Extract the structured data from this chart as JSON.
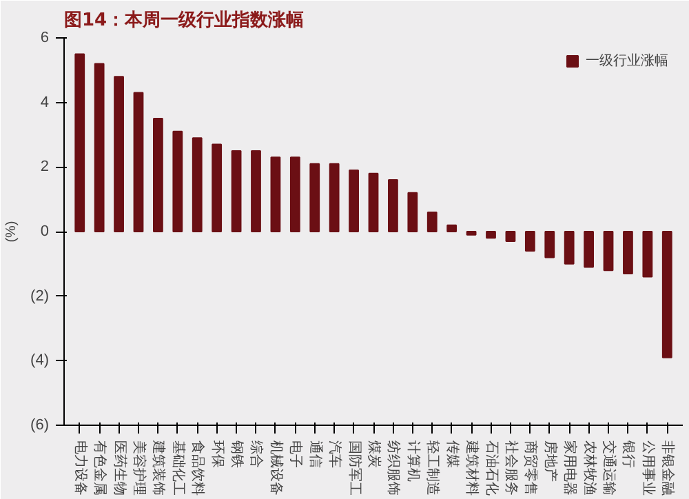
{
  "chart_data": {
    "type": "bar",
    "title": "图14：本周一级行业指数涨幅",
    "ylabel": "(%)",
    "categories": [
      "电力设备",
      "有色金属",
      "医药生物",
      "美容护理",
      "建筑装饰",
      "基础化工",
      "食品饮料",
      "环保",
      "钢铁",
      "综合",
      "机械设备",
      "电子",
      "通信",
      "汽车",
      "国防军工",
      "煤炭",
      "纺织服饰",
      "计算机",
      "轻工制造",
      "传媒",
      "建筑材料",
      "石油石化",
      "社会服务",
      "商贸零售",
      "房地产",
      "家用电器",
      "农林牧渔",
      "交通运输",
      "银行",
      "公用事业",
      "非银金融"
    ],
    "series": [
      {
        "name": "一级行业涨幅",
        "color": "#6b0f14",
        "values": [
          5.5,
          5.2,
          4.8,
          4.3,
          3.5,
          3.1,
          2.9,
          2.7,
          2.5,
          2.5,
          2.3,
          2.3,
          2.1,
          2.1,
          1.9,
          1.8,
          1.6,
          1.2,
          0.6,
          0.2,
          -0.1,
          -0.2,
          -0.3,
          -0.6,
          -0.8,
          -1.0,
          -1.1,
          -1.2,
          -1.3,
          -1.4,
          -3.9
        ]
      }
    ],
    "ylim": [
      -6,
      6
    ],
    "yticks": [
      {
        "value": -6,
        "label": "(6)"
      },
      {
        "value": -4,
        "label": "(4)"
      },
      {
        "value": -2,
        "label": "(2)"
      },
      0,
      2,
      4,
      6
    ],
    "grid": false,
    "legend": "top right"
  }
}
